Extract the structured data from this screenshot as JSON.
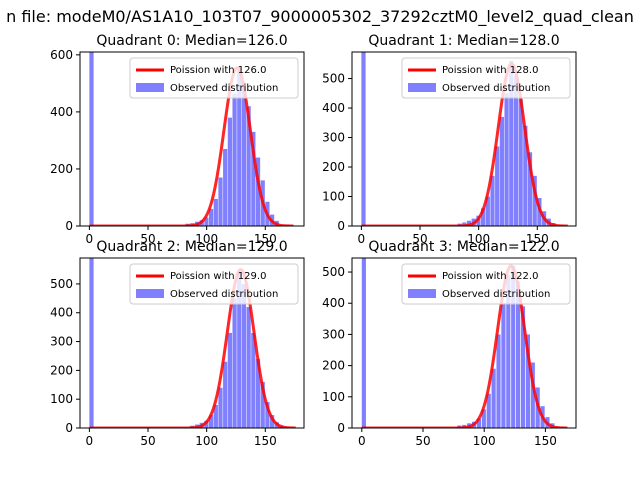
{
  "figure": {
    "suptitle": "n file: modeM0/AS1A10_103T07_9000005302_37292cztM0_level2_quad_clean"
  },
  "colors": {
    "poisson": "#ff0000",
    "observed": "#8080ff",
    "axis": "#000000"
  },
  "chart_data": [
    {
      "type": "histogram",
      "title": "Quadrant 0: Median=126.0",
      "xlim": [
        -8,
        183
      ],
      "ylim": [
        0,
        610
      ],
      "xticks": [
        0,
        50,
        100,
        150
      ],
      "yticks": [
        0,
        200,
        400,
        600
      ],
      "legend": {
        "position": "top-right",
        "entries": [
          "Poission with 126.0",
          "Observed distribution"
        ]
      },
      "poisson_mean": 126.0,
      "poisson_peak": 555,
      "poisson_range": [
        0,
        174
      ],
      "bar_width": 3.6,
      "bins": [
        0,
        82,
        86,
        90,
        94,
        98,
        102,
        106,
        110,
        114,
        118,
        122,
        126,
        130,
        134,
        138,
        142,
        146,
        150,
        154,
        158
      ],
      "counts": [
        620,
        8,
        10,
        15,
        20,
        30,
        60,
        95,
        170,
        270,
        380,
        465,
        545,
        500,
        420,
        330,
        240,
        160,
        85,
        40,
        18
      ]
    },
    {
      "type": "histogram",
      "title": "Quadrant 1: Median=128.0",
      "xlim": [
        -8,
        183
      ],
      "ylim": [
        0,
        590
      ],
      "xticks": [
        0,
        50,
        100,
        150
      ],
      "yticks": [
        0,
        100,
        200,
        300,
        400,
        500
      ],
      "legend": {
        "position": "top-right",
        "entries": [
          "Poission with 128.0",
          "Observed distribution"
        ]
      },
      "poisson_mean": 128.0,
      "poisson_peak": 550,
      "poisson_range": [
        0,
        176
      ],
      "bar_width": 3.6,
      "bins": [
        0,
        82,
        86,
        90,
        94,
        98,
        102,
        106,
        110,
        114,
        118,
        122,
        126,
        130,
        134,
        138,
        142,
        146,
        150,
        154,
        158,
        162
      ],
      "counts": [
        590,
        8,
        12,
        18,
        25,
        35,
        60,
        100,
        170,
        270,
        370,
        450,
        560,
        510,
        430,
        340,
        250,
        170,
        95,
        50,
        25,
        10
      ]
    },
    {
      "type": "histogram",
      "title": "Quadrant 2: Median=129.0",
      "xlim": [
        -8,
        183
      ],
      "ylim": [
        0,
        590
      ],
      "xticks": [
        0,
        50,
        100,
        150
      ],
      "yticks": [
        0,
        100,
        200,
        300,
        400,
        500
      ],
      "legend": {
        "position": "top-right",
        "entries": [
          "Poission with 129.0",
          "Observed distribution"
        ]
      },
      "poisson_mean": 129.0,
      "poisson_peak": 550,
      "poisson_range": [
        0,
        176
      ],
      "bar_width": 3.6,
      "bins": [
        0,
        86,
        90,
        94,
        98,
        102,
        106,
        110,
        114,
        118,
        122,
        126,
        130,
        134,
        138,
        142,
        146,
        150,
        154,
        158,
        162
      ],
      "counts": [
        590,
        8,
        12,
        18,
        25,
        45,
        80,
        140,
        230,
        330,
        450,
        540,
        500,
        420,
        330,
        240,
        160,
        90,
        45,
        20,
        8
      ]
    },
    {
      "type": "histogram",
      "title": "Quadrant 3: Median=122.0",
      "xlim": [
        -8,
        175
      ],
      "ylim": [
        0,
        545
      ],
      "xticks": [
        0,
        50,
        100,
        150
      ],
      "yticks": [
        0,
        100,
        200,
        300,
        400,
        500
      ],
      "legend": {
        "position": "top-right",
        "entries": [
          "Poission with 122.0",
          "Observed distribution"
        ]
      },
      "poisson_mean": 122.0,
      "poisson_peak": 520,
      "poisson_range": [
        0,
        168
      ],
      "bar_width": 3.4,
      "bins": [
        0,
        78,
        82,
        86,
        90,
        94,
        98,
        102,
        106,
        110,
        114,
        118,
        122,
        126,
        130,
        134,
        138,
        142,
        146,
        150,
        154
      ],
      "counts": [
        550,
        8,
        10,
        15,
        20,
        30,
        60,
        110,
        190,
        300,
        400,
        490,
        520,
        470,
        390,
        300,
        210,
        130,
        70,
        35,
        15
      ]
    }
  ]
}
